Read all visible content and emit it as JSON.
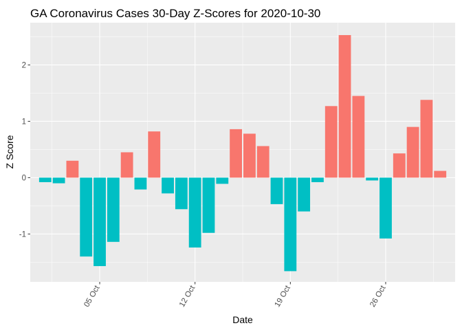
{
  "chart_data": {
    "type": "bar",
    "title": "GA Coronavirus Cases 30-Day Z-Scores for 2020-10-30",
    "xlabel": "Date",
    "ylabel": "Z Score",
    "x_dates": [
      "2020-10-01",
      "2020-10-02",
      "2020-10-03",
      "2020-10-04",
      "2020-10-05",
      "2020-10-06",
      "2020-10-07",
      "2020-10-08",
      "2020-10-09",
      "2020-10-10",
      "2020-10-11",
      "2020-10-12",
      "2020-10-13",
      "2020-10-14",
      "2020-10-15",
      "2020-10-16",
      "2020-10-17",
      "2020-10-18",
      "2020-10-19",
      "2020-10-20",
      "2020-10-21",
      "2020-10-22",
      "2020-10-23",
      "2020-10-24",
      "2020-10-25",
      "2020-10-26",
      "2020-10-27",
      "2020-10-28",
      "2020-10-29",
      "2020-10-30"
    ],
    "values": [
      -0.08,
      -0.1,
      0.3,
      -1.4,
      -1.57,
      -1.14,
      0.45,
      -0.21,
      0.82,
      -0.28,
      -0.56,
      -1.24,
      -0.98,
      -0.11,
      0.86,
      0.78,
      0.56,
      -0.47,
      -1.66,
      -0.6,
      -0.08,
      1.27,
      2.53,
      1.45,
      -0.05,
      -1.08,
      0.43,
      0.9,
      1.38,
      0.12
    ],
    "x_ticks": [
      "05 Oct",
      "12 Oct",
      "19 Oct",
      "26 Oct"
    ],
    "y_ticks": [
      "-1",
      "0",
      "1",
      "2"
    ],
    "ylim": [
      -1.85,
      2.75
    ],
    "grid": true,
    "legend": "none",
    "colors": {
      "positive": "#F8766D",
      "negative": "#00BFC4",
      "panel": "#EBEBEB",
      "grid_major": "#FFFFFF",
      "tick_text": "#4D4D4D"
    }
  }
}
